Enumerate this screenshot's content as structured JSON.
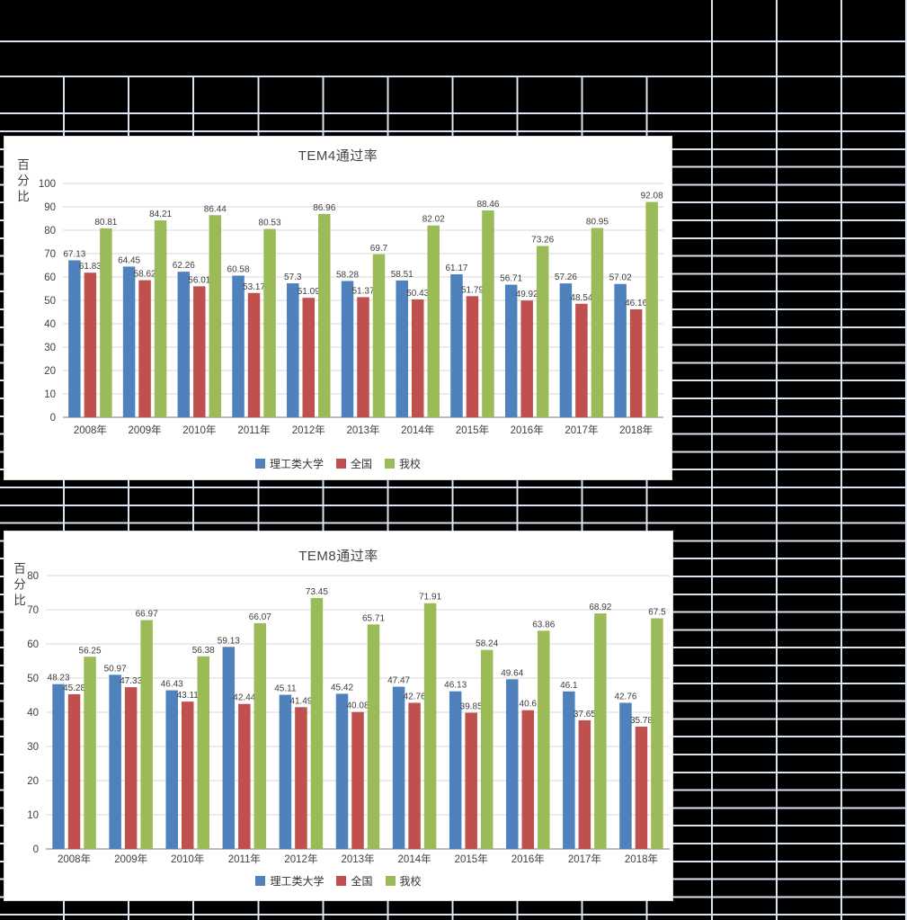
{
  "sheet": {
    "fill_color": "#000000",
    "gridline_color": "#dbe4f1"
  },
  "chart_data": [
    {
      "type": "bar",
      "title": "TEM4通过率",
      "ylabel": "百分比",
      "xlabel": "",
      "ylim": [
        0,
        100
      ],
      "ytick_step": 10,
      "grid": true,
      "data_labels": true,
      "legend_position": "bottom",
      "categories": [
        "2008年",
        "2009年",
        "2010年",
        "2011年",
        "2012年",
        "2013年",
        "2014年",
        "2015年",
        "2016年",
        "2017年",
        "2018年"
      ],
      "series": [
        {
          "name": "理工类大学",
          "color": "#4F81BD",
          "values": [
            67.13,
            64.45,
            62.26,
            60.58,
            57.3,
            58.28,
            58.51,
            61.17,
            56.71,
            57.26,
            57.02
          ]
        },
        {
          "name": "全国",
          "color": "#C0504D",
          "values": [
            61.83,
            58.62,
            56.01,
            53.17,
            51.09,
            51.37,
            50.43,
            51.79,
            49.92,
            48.54,
            46.16
          ]
        },
        {
          "name": "我校",
          "color": "#9BBB59",
          "values": [
            80.81,
            84.21,
            86.44,
            80.53,
            86.96,
            69.7,
            82.02,
            88.46,
            73.26,
            80.95,
            92.08
          ]
        }
      ]
    },
    {
      "type": "bar",
      "title": "TEM8通过率",
      "ylabel": "百分比",
      "xlabel": "",
      "ylim": [
        0,
        80
      ],
      "ytick_step": 10,
      "grid": true,
      "data_labels": true,
      "legend_position": "bottom",
      "categories": [
        "2008年",
        "2009年",
        "2010年",
        "2011年",
        "2012年",
        "2013年",
        "2014年",
        "2015年",
        "2016年",
        "2017年",
        "2018年"
      ],
      "series": [
        {
          "name": "理工类大学",
          "color": "#4F81BD",
          "values": [
            48.23,
            50.97,
            46.43,
            59.13,
            45.11,
            45.42,
            47.47,
            46.13,
            49.64,
            46.1,
            42.76
          ]
        },
        {
          "name": "全国",
          "color": "#C0504D",
          "values": [
            45.28,
            47.33,
            43.11,
            42.44,
            41.49,
            40.08,
            42.76,
            39.85,
            40.6,
            37.65,
            35.78
          ]
        },
        {
          "name": "我校",
          "color": "#9BBB59",
          "values": [
            56.25,
            66.97,
            56.38,
            66.07,
            73.45,
            65.71,
            71.91,
            58.24,
            63.86,
            68.92,
            67.5
          ]
        }
      ]
    }
  ]
}
